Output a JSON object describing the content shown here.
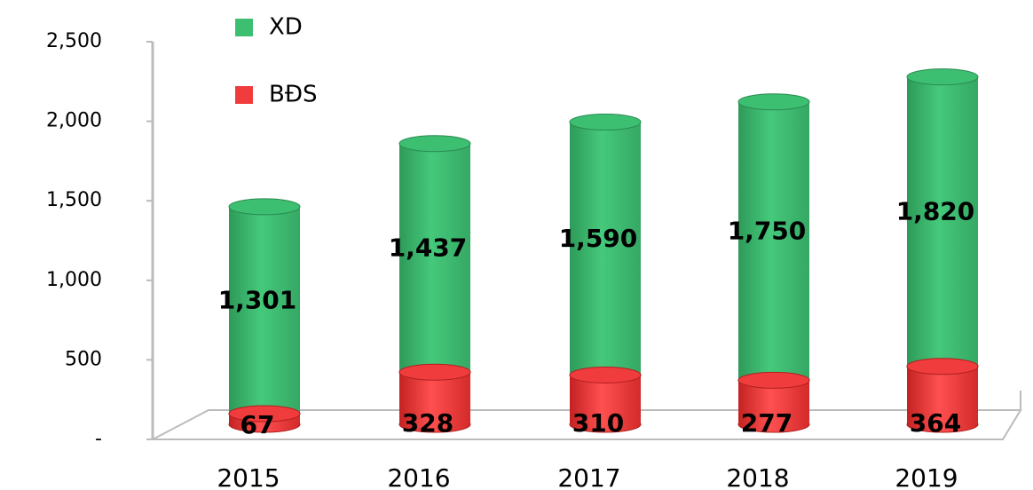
{
  "chart_data": {
    "type": "bar",
    "stacked": true,
    "categories": [
      "2015",
      "2016",
      "2017",
      "2018",
      "2019"
    ],
    "series": [
      {
        "name": "BĐS",
        "color": "#f03c3c",
        "values": [
          67,
          328,
          310,
          277,
          364
        ],
        "value_labels": [
          "67",
          "328",
          "310",
          "277",
          "364"
        ]
      },
      {
        "name": "XD",
        "color": "#3dbf72",
        "values": [
          1301,
          1437,
          1590,
          1750,
          1820
        ],
        "value_labels": [
          "1,301",
          "1,437",
          "1,590",
          "1,750",
          "1,820"
        ]
      }
    ],
    "ylim": [
      0,
      2500
    ],
    "yticks": [
      {
        "value": 0,
        "label": "-"
      },
      500,
      {
        "value": 1000,
        "label": "1,000"
      },
      {
        "value": 1500,
        "label": "1,500"
      },
      {
        "value": 2000,
        "label": "2,000"
      },
      {
        "value": 2500,
        "label": "2,500"
      }
    ],
    "legend": "top"
  }
}
